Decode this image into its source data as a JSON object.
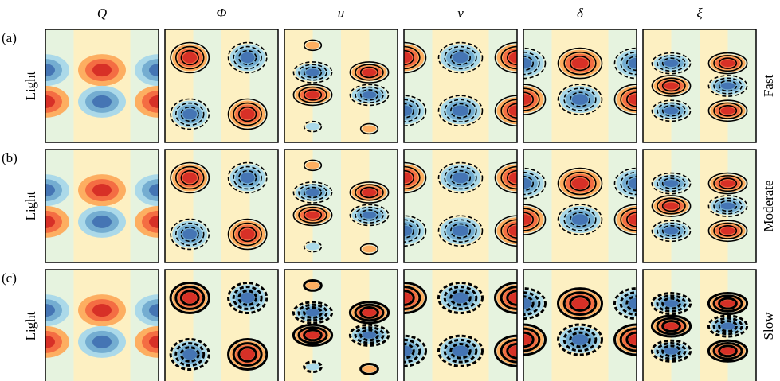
{
  "columns": [
    "Q",
    "Φ",
    "u",
    "v",
    "δ",
    "ξ"
  ],
  "rows": [
    {
      "tag": "(a)",
      "label": "Light",
      "regime": "Fast"
    },
    {
      "tag": "(b)",
      "label": "Light",
      "regime": "Moderate"
    },
    {
      "tag": "(c)",
      "label": "Light",
      "regime": "Slow"
    }
  ]
}
